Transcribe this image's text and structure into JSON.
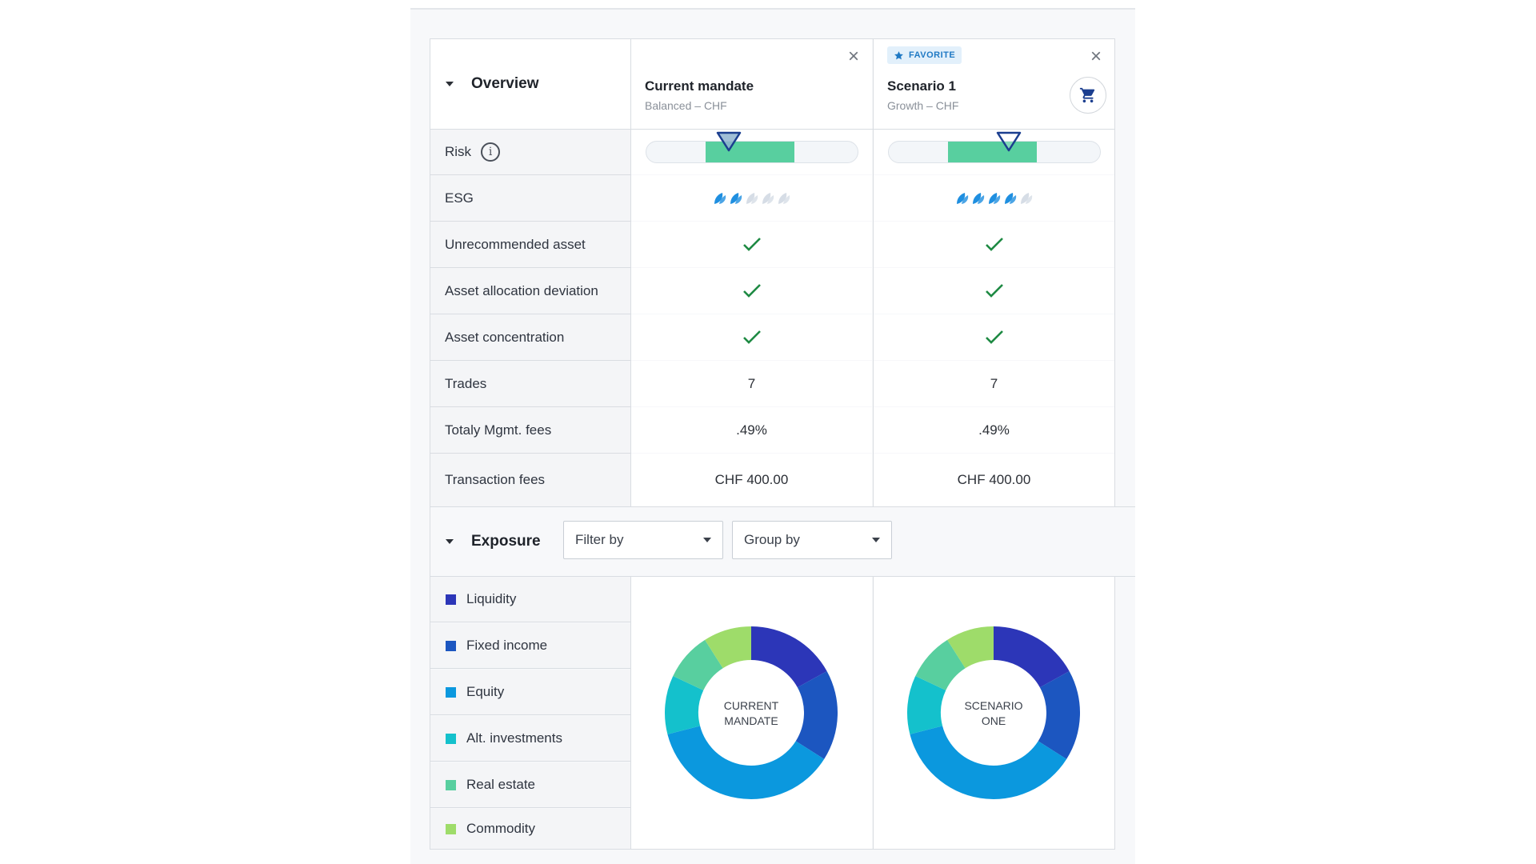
{
  "overview": {
    "title": "Overview"
  },
  "scenarios": [
    {
      "title": "Current mandate",
      "subtitle": "Balanced – CHF",
      "favorite": false,
      "risk": {
        "band_start": 0.28,
        "band_end": 0.7,
        "marker": 0.39
      },
      "esg": {
        "filled": 2,
        "total": 5
      },
      "unrecommended_asset": true,
      "asset_allocation_deviation": true,
      "asset_concentration": true,
      "trades": "7",
      "mgmt_fees": ".49%",
      "transaction_fees": "CHF 400.00",
      "donut_label_line1": "CURRENT",
      "donut_label_line2": "MANDATE",
      "exposure": [
        0.17,
        0.17,
        0.37,
        0.11,
        0.09,
        0.09
      ]
    },
    {
      "title": "Scenario 1",
      "subtitle": "Growth – CHF",
      "favorite": true,
      "favorite_label": "FAVORITE",
      "risk": {
        "band_start": 0.28,
        "band_end": 0.7,
        "marker": 0.57
      },
      "esg": {
        "filled": 4,
        "total": 5
      },
      "unrecommended_asset": true,
      "asset_allocation_deviation": true,
      "asset_concentration": true,
      "trades": "7",
      "mgmt_fees": ".49%",
      "transaction_fees": "CHF 400.00",
      "donut_label_line1": "SCENARIO",
      "donut_label_line2": "ONE",
      "exposure": [
        0.17,
        0.17,
        0.37,
        0.11,
        0.09,
        0.09
      ]
    }
  ],
  "rows": {
    "risk": "Risk",
    "esg": "ESG",
    "unrecommended_asset": "Unrecommended asset",
    "asset_allocation_deviation": "Asset allocation deviation",
    "asset_concentration": "Asset concentration",
    "trades": "Trades",
    "mgmt_fees": "Totaly Mgmt. fees",
    "transaction_fees": "Transaction fees"
  },
  "exposure": {
    "title": "Exposure",
    "filter_label": "Filter by",
    "group_label": "Group by",
    "legend": [
      {
        "label": "Liquidity",
        "color": "#2c36b8"
      },
      {
        "label": "Fixed income",
        "color": "#1c56c0"
      },
      {
        "label": "Equity",
        "color": "#0b98de"
      },
      {
        "label": "Alt. investments",
        "color": "#14c1cc"
      },
      {
        "label": "Real estate",
        "color": "#58cf9f"
      },
      {
        "label": "Commodity",
        "color": "#9edc6a"
      }
    ]
  },
  "colors": {
    "accent": "#1f79c4",
    "check": "#1e8a43",
    "risk_band": "#58cf9f",
    "leaf_filled": "#1f8fe0",
    "leaf_empty": "#d6dde6"
  }
}
